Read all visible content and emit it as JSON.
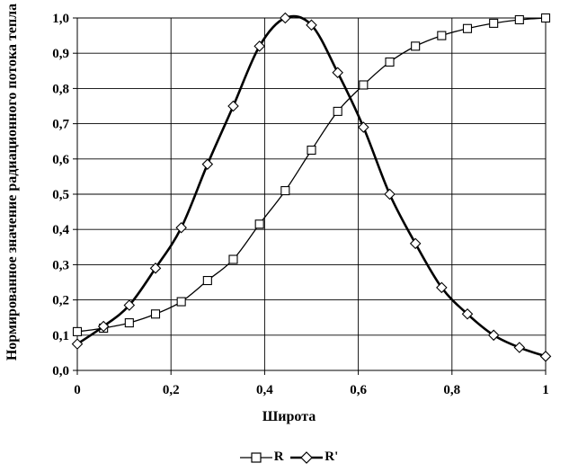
{
  "chart_data": {
    "type": "line",
    "title": "",
    "xlabel": "Широта",
    "ylabel": "Нормированное значение радиационного потока тепла",
    "xlim": [
      0,
      1
    ],
    "ylim": [
      0,
      1.0
    ],
    "grid": true,
    "legend_position": "bottom",
    "x_ticks": [
      "0",
      "0,2",
      "0,4",
      "0,6",
      "0,8",
      "1"
    ],
    "y_ticks": [
      "0,0",
      "0,1",
      "0,2",
      "0,3",
      "0,4",
      "0,5",
      "0,6",
      "0,7",
      "0,8",
      "0,9",
      "1,0"
    ],
    "series": [
      {
        "name": "R",
        "marker": "square",
        "x": [
          0,
          0.056,
          0.111,
          0.167,
          0.222,
          0.278,
          0.333,
          0.389,
          0.444,
          0.5,
          0.556,
          0.611,
          0.667,
          0.722,
          0.778,
          0.833,
          0.889,
          0.944,
          1.0
        ],
        "values": [
          0.11,
          0.12,
          0.135,
          0.16,
          0.195,
          0.255,
          0.315,
          0.415,
          0.51,
          0.625,
          0.735,
          0.81,
          0.875,
          0.92,
          0.95,
          0.97,
          0.985,
          0.995,
          1.0
        ]
      },
      {
        "name": "R'",
        "marker": "diamond",
        "x": [
          0,
          0.056,
          0.111,
          0.167,
          0.222,
          0.278,
          0.333,
          0.389,
          0.444,
          0.5,
          0.556,
          0.611,
          0.667,
          0.722,
          0.778,
          0.833,
          0.889,
          0.944,
          1.0
        ],
        "values": [
          0.075,
          0.125,
          0.185,
          0.29,
          0.405,
          0.585,
          0.75,
          0.92,
          1.0,
          0.98,
          0.845,
          0.69,
          0.5,
          0.36,
          0.235,
          0.16,
          0.1,
          0.065,
          0.04
        ]
      }
    ]
  }
}
